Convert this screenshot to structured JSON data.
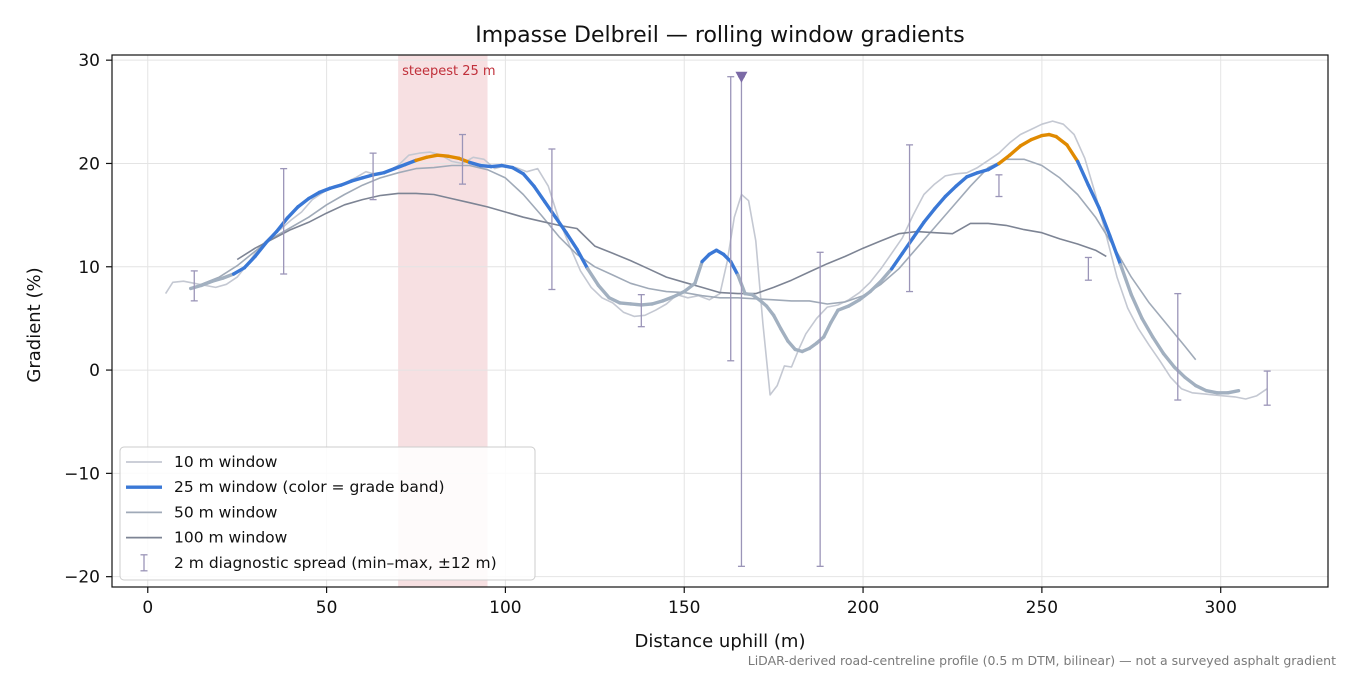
{
  "chart_data": {
    "type": "line",
    "title": "Impasse Delbreil — rolling window gradients",
    "xlabel": "Distance uphill (m)",
    "ylabel": "Gradient (%)",
    "xlim": [
      -10,
      330
    ],
    "ylim": [
      -21,
      30.5
    ],
    "xticks": [
      0,
      50,
      100,
      150,
      200,
      250,
      300
    ],
    "yticks": [
      -20,
      -10,
      0,
      10,
      20,
      30
    ],
    "grid": true,
    "legend_position": "lower-left",
    "footnote": "LiDAR-derived road-centreline profile (0.5 m DTM, bilinear) — not a surveyed asphalt gradient",
    "steepest": {
      "label": "steepest 25 m",
      "x_start": 70,
      "x_end": 95,
      "color": "#e8a5ac"
    },
    "colors": {
      "w10": "#c4c8d2",
      "w25_default": "#a2b0c0",
      "w25_band_mid": "#3a78d6",
      "w25_band_high": "#e08a00",
      "w50": "#a0aab8",
      "w100": "#7d8494",
      "diag": "#9b95b8",
      "steepest_label": "#c0303a"
    },
    "grade_bands": {
      "mid_min": 9.5,
      "high_min": 20.3
    },
    "legend": [
      {
        "key": "w10",
        "label": "10 m window"
      },
      {
        "key": "w25",
        "label": "25 m window (color = grade band)"
      },
      {
        "key": "w50",
        "label": "50 m window"
      },
      {
        "key": "w100",
        "label": "100 m window"
      },
      {
        "key": "diag",
        "label": "2 m diagnostic spread (min–max, ±12 m)"
      }
    ],
    "series": [
      {
        "name": "10 m window",
        "x": [
          5,
          7,
          10,
          13,
          16,
          19,
          22,
          25,
          28,
          31,
          34,
          37,
          40,
          43,
          46,
          49,
          52,
          55,
          58,
          61,
          64,
          67,
          70,
          73,
          76,
          79,
          82,
          85,
          88,
          91,
          94,
          97,
          100,
          103,
          106,
          109,
          112,
          115,
          118,
          121,
          124,
          127,
          130,
          133,
          136,
          139,
          142,
          145,
          148,
          151,
          154,
          157,
          160,
          162,
          164,
          166,
          168,
          170,
          172,
          174,
          176,
          178,
          180,
          182,
          184,
          187,
          190,
          193,
          196,
          199,
          202,
          205,
          208,
          211,
          214,
          217,
          220,
          223,
          226,
          229,
          232,
          235,
          238,
          241,
          244,
          247,
          250,
          253,
          256,
          259,
          262,
          265,
          268,
          271,
          274,
          277,
          280,
          283,
          286,
          289,
          292,
          295,
          298,
          301,
          304,
          307,
          310,
          313
        ],
        "y": [
          7.4,
          8.5,
          8.6,
          8.4,
          8.2,
          8.0,
          8.3,
          9.0,
          10.3,
          11.8,
          12.8,
          13.6,
          14.5,
          15.3,
          16.5,
          17.2,
          17.8,
          18.1,
          18.6,
          19.2,
          18.9,
          19.2,
          19.8,
          20.8,
          21.0,
          21.1,
          20.8,
          20.2,
          20.0,
          20.6,
          20.4,
          19.5,
          19.8,
          19.6,
          19.2,
          19.5,
          17.8,
          14.5,
          12.0,
          9.6,
          8.0,
          7.0,
          6.5,
          5.6,
          5.2,
          5.3,
          5.8,
          6.4,
          7.3,
          7.0,
          7.2,
          6.8,
          7.4,
          10.5,
          14.8,
          17.0,
          16.4,
          12.5,
          4.5,
          -2.4,
          -1.5,
          0.4,
          0.3,
          2.0,
          3.5,
          5.0,
          6.1,
          6.3,
          6.8,
          7.5,
          8.5,
          9.8,
          11.3,
          12.8,
          15.0,
          17.0,
          18.0,
          18.8,
          19.0,
          19.1,
          19.6,
          20.3,
          21.0,
          22.0,
          22.8,
          23.3,
          23.8,
          24.1,
          23.8,
          22.8,
          20.5,
          17.0,
          13.0,
          9.0,
          6.0,
          4.0,
          2.4,
          0.9,
          -0.7,
          -1.8,
          -2.2,
          -2.3,
          -2.4,
          -2.5,
          -2.6,
          -2.8,
          -2.5,
          -1.8
        ]
      },
      {
        "name": "25 m window",
        "x": [
          12,
          15,
          18,
          21,
          24,
          27,
          30,
          33,
          36,
          39,
          42,
          45,
          48,
          51,
          54,
          57,
          60,
          63,
          66,
          69,
          72,
          75,
          78,
          81,
          84,
          87,
          90,
          93,
          96,
          99,
          102,
          105,
          108,
          111,
          114,
          117,
          120,
          123,
          126,
          129,
          132,
          135,
          138,
          141,
          144,
          147,
          150,
          153,
          155,
          157,
          159,
          161,
          163,
          165,
          167,
          169,
          171,
          173,
          175,
          177,
          179,
          181,
          183,
          185,
          187,
          189,
          191,
          193,
          196,
          199,
          202,
          205,
          208,
          211,
          214,
          217,
          220,
          223,
          226,
          229,
          232,
          235,
          238,
          241,
          244,
          247,
          250,
          252,
          254,
          257,
          260,
          263,
          266,
          269,
          272,
          275,
          278,
          281,
          284,
          287,
          290,
          293,
          296,
          299,
          302,
          305
        ],
        "y": [
          7.9,
          8.2,
          8.6,
          8.9,
          9.3,
          9.9,
          11.0,
          12.3,
          13.4,
          14.7,
          15.8,
          16.6,
          17.2,
          17.6,
          17.9,
          18.3,
          18.6,
          18.9,
          19.1,
          19.5,
          19.9,
          20.3,
          20.6,
          20.8,
          20.7,
          20.5,
          20.1,
          19.8,
          19.7,
          19.8,
          19.6,
          19.0,
          17.8,
          16.3,
          14.8,
          13.3,
          11.7,
          9.8,
          8.2,
          7.0,
          6.5,
          6.4,
          6.3,
          6.4,
          6.7,
          7.1,
          7.6,
          8.4,
          10.5,
          11.2,
          11.6,
          11.2,
          10.5,
          9.2,
          7.4,
          7.3,
          6.8,
          6.2,
          5.3,
          4.0,
          2.8,
          2.0,
          1.8,
          2.1,
          2.6,
          3.2,
          4.6,
          5.8,
          6.2,
          6.8,
          7.6,
          8.6,
          9.8,
          11.3,
          12.8,
          14.3,
          15.6,
          16.8,
          17.8,
          18.7,
          19.1,
          19.4,
          20.0,
          20.8,
          21.7,
          22.3,
          22.7,
          22.8,
          22.6,
          21.8,
          20.2,
          17.9,
          15.7,
          13.0,
          10.2,
          7.3,
          5.0,
          3.2,
          1.6,
          0.3,
          -0.7,
          -1.5,
          -2.0,
          -2.2,
          -2.2,
          -2.0
        ]
      },
      {
        "name": "50 m window",
        "x": [
          12,
          15,
          20,
          25,
          30,
          35,
          40,
          45,
          50,
          55,
          60,
          65,
          70,
          75,
          80,
          85,
          90,
          95,
          100,
          105,
          110,
          115,
          120,
          125,
          130,
          135,
          140,
          145,
          150,
          155,
          160,
          165,
          170,
          175,
          180,
          185,
          190,
          195,
          200,
          205,
          210,
          215,
          220,
          225,
          230,
          235,
          240,
          245,
          250,
          255,
          260,
          265,
          270,
          275,
          280,
          285,
          290,
          293
        ],
        "y": [
          7.9,
          8.3,
          9.0,
          10.1,
          11.5,
          12.8,
          13.8,
          14.8,
          16.0,
          17.0,
          17.9,
          18.6,
          19.1,
          19.5,
          19.6,
          19.8,
          19.8,
          19.4,
          18.6,
          17.0,
          15.0,
          12.9,
          11.2,
          10.0,
          9.2,
          8.4,
          7.9,
          7.6,
          7.5,
          7.2,
          7.0,
          7.0,
          6.9,
          6.8,
          6.7,
          6.7,
          6.4,
          6.6,
          7.2,
          8.3,
          9.8,
          11.8,
          13.8,
          15.8,
          17.8,
          19.6,
          20.4,
          20.4,
          19.8,
          18.6,
          17.0,
          14.8,
          12.0,
          9.0,
          6.5,
          4.4,
          2.3,
          1.0
        ]
      },
      {
        "name": "100 m window",
        "x": [
          25,
          30,
          35,
          40,
          45,
          50,
          55,
          60,
          65,
          70,
          75,
          80,
          85,
          90,
          95,
          100,
          105,
          110,
          115,
          120,
          125,
          130,
          135,
          140,
          145,
          150,
          155,
          160,
          165,
          170,
          175,
          180,
          185,
          190,
          195,
          200,
          205,
          210,
          215,
          220,
          225,
          230,
          235,
          240,
          245,
          250,
          255,
          260,
          265,
          268
        ],
        "y": [
          10.7,
          11.8,
          12.7,
          13.6,
          14.3,
          15.2,
          16.0,
          16.5,
          16.9,
          17.1,
          17.1,
          17.0,
          16.6,
          16.2,
          15.8,
          15.3,
          14.8,
          14.4,
          14.0,
          13.7,
          12.0,
          11.3,
          10.6,
          9.8,
          9.0,
          8.5,
          8.0,
          7.5,
          7.4,
          7.4,
          8.0,
          8.7,
          9.5,
          10.3,
          11.0,
          11.8,
          12.5,
          13.2,
          13.4,
          13.3,
          13.2,
          14.2,
          14.2,
          14.0,
          13.6,
          13.3,
          12.7,
          12.2,
          11.6,
          11.0
        ]
      }
    ],
    "diagnostic": [
      {
        "x": 13,
        "min": 6.7,
        "max": 9.6
      },
      {
        "x": 38,
        "min": 9.3,
        "max": 19.5
      },
      {
        "x": 63,
        "min": 16.5,
        "max": 21.0
      },
      {
        "x": 88,
        "min": 18.0,
        "max": 22.8
      },
      {
        "x": 113,
        "min": 7.8,
        "max": 21.4
      },
      {
        "x": 138,
        "min": 4.2,
        "max": 7.3
      },
      {
        "x": 163,
        "min": 0.9,
        "max": 28.4
      },
      {
        "x": 166,
        "min": -19.0,
        "max": 28.4
      },
      {
        "x": 188,
        "min": -19.0,
        "max": 11.4
      },
      {
        "x": 213,
        "min": 7.6,
        "max": 21.8
      },
      {
        "x": 238,
        "min": 16.8,
        "max": 18.9
      },
      {
        "x": 263,
        "min": 8.7,
        "max": 10.9
      },
      {
        "x": 288,
        "min": -2.9,
        "max": 7.4
      },
      {
        "x": 313,
        "min": -3.4,
        "max": -0.1
      }
    ],
    "marker": {
      "x": 166,
      "y": 28.4
    }
  }
}
